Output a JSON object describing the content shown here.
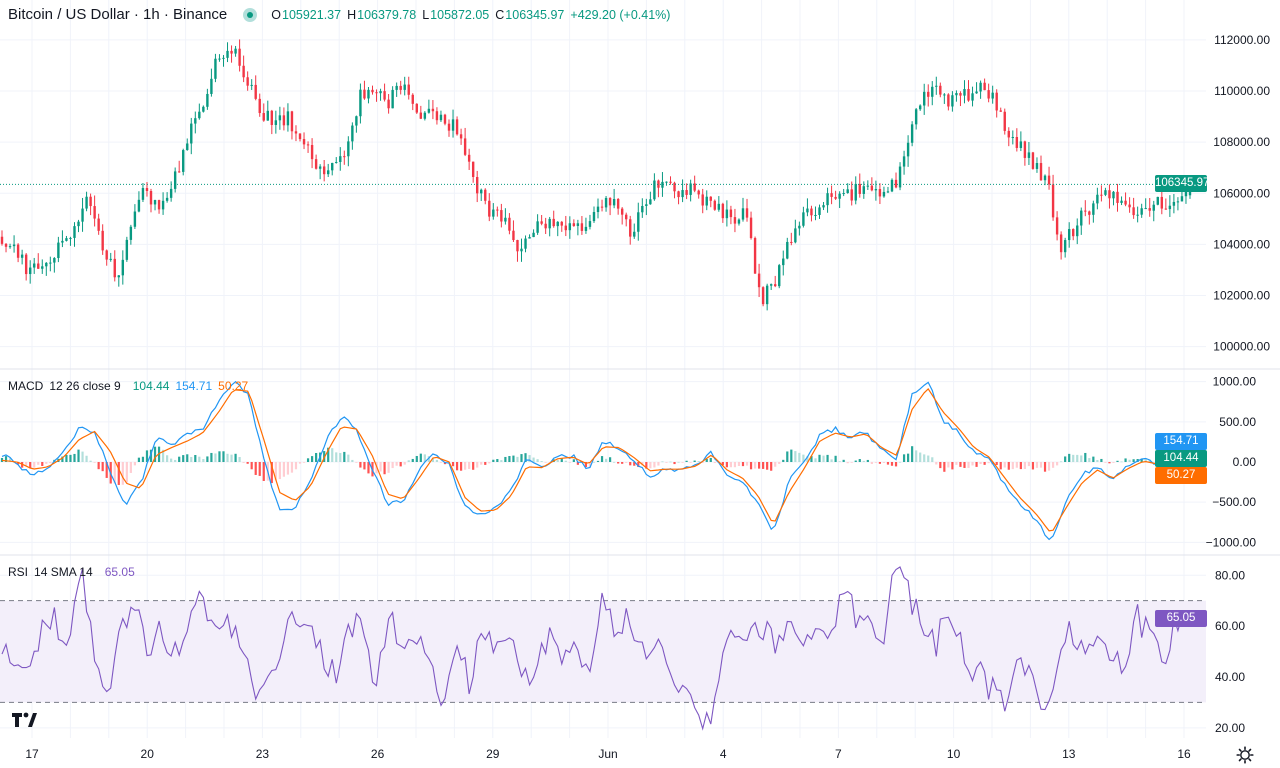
{
  "header": {
    "symbol": "Bitcoin / US Dollar",
    "interval": "1h",
    "exchange": "Binance",
    "title": "Bitcoin / US Dollar · 1h · Binance",
    "open": "105921.37",
    "high": "106379.78",
    "low": "105872.05",
    "close": "106345.97",
    "change": "+429.20 (+0.41%)"
  },
  "colors": {
    "up": "#089981",
    "down": "#f23645",
    "macd_line": "#2196f3",
    "signal_line": "#ff6d00",
    "rsi_line": "#7e57c2",
    "rsi_band": "#f3effa",
    "grid": "#f0f3fa"
  },
  "chart_data": [
    {
      "type": "candlestick",
      "name": "price",
      "x": [
        "17",
        "18",
        "19",
        "20",
        "21",
        "22",
        "23",
        "24",
        "25",
        "26",
        "27",
        "28",
        "29",
        "30",
        "31",
        "Jun",
        "2",
        "3",
        "4",
        "5",
        "6",
        "7",
        "8",
        "9",
        "10",
        "11",
        "12",
        "13",
        "14",
        "15",
        "16"
      ],
      "x_ticks": [
        "17",
        "20",
        "23",
        "26",
        "29",
        "Jun",
        "4",
        "7",
        "10",
        "13",
        "16"
      ],
      "close_path": [
        104300,
        103600,
        102900,
        103300,
        103800,
        104600,
        106000,
        103900,
        102600,
        105000,
        106200,
        105300,
        106500,
        108200,
        109200,
        111400,
        111800,
        110600,
        109200,
        108700,
        108900,
        108300,
        107200,
        106900,
        107300,
        109800,
        110200,
        109600,
        110300,
        109300,
        109000,
        108800,
        108400,
        106400,
        105400,
        105000,
        103900,
        104600,
        104900,
        105000,
        104400,
        105000,
        105800,
        105500,
        104300,
        105800,
        106600,
        106100,
        106200,
        105800,
        105600,
        104800,
        105300,
        101700,
        102600,
        104300,
        105000,
        105500,
        106000,
        105900,
        106200,
        106100,
        106000,
        107200,
        109500,
        110100,
        109600,
        109700,
        110100,
        109900,
        108600,
        108000,
        107200,
        106500,
        103800,
        104800,
        105500,
        106100,
        105700,
        105200,
        105400,
        105600,
        105500,
        106345.97
      ],
      "yticks": [
        100000,
        102000,
        104000,
        106000,
        108000,
        110000,
        112000
      ],
      "ylim": [
        99400,
        112700
      ],
      "last_price": "106345.97",
      "tick_labels": [
        "100000.00",
        "102000.00",
        "104000.00",
        "106000.00",
        "108000.00",
        "110000.00",
        "112000.00"
      ]
    },
    {
      "type": "line+histogram",
      "name": "MACD",
      "params": "12 26 close 9",
      "series": [
        {
          "name": "histogram",
          "value": "104.44"
        },
        {
          "name": "macd",
          "value": "154.71"
        },
        {
          "name": "signal",
          "value": "50.27"
        }
      ],
      "macd_path": [
        100,
        -40,
        -150,
        -80,
        120,
        420,
        380,
        -120,
        -520,
        -260,
        310,
        200,
        360,
        400,
        730,
        1010,
        820,
        10,
        -620,
        -560,
        -240,
        250,
        580,
        380,
        -80,
        -520,
        -480,
        -120,
        130,
        -30,
        -560,
        -650,
        -590,
        -350,
        30,
        -90,
        60,
        70,
        -80,
        250,
        180,
        0,
        -170,
        -90,
        -100,
        -40,
        130,
        -180,
        -260,
        -520,
        -880,
        -240,
        10,
        330,
        410,
        290,
        380,
        140,
        50,
        850,
        1020,
        520,
        380,
        120,
        30,
        -280,
        -520,
        -720,
        -1000,
        -480,
        -160,
        -60,
        -220,
        -40,
        30,
        -50,
        80,
        154.71
      ],
      "signal_path": [
        20,
        0,
        -90,
        -60,
        60,
        280,
        380,
        140,
        -260,
        -330,
        90,
        180,
        260,
        360,
        610,
        900,
        880,
        260,
        -380,
        -480,
        -300,
        100,
        440,
        410,
        80,
        -400,
        -460,
        -210,
        70,
        0,
        -440,
        -610,
        -600,
        -420,
        -60,
        -70,
        40,
        60,
        -30,
        190,
        180,
        50,
        -110,
        -90,
        -90,
        -50,
        90,
        -100,
        -200,
        -420,
        -780,
        -380,
        -80,
        260,
        360,
        310,
        350,
        180,
        80,
        660,
        920,
        620,
        420,
        180,
        60,
        -200,
        -450,
        -640,
        -890,
        -560,
        -260,
        -100,
        -200,
        -80,
        10,
        -30,
        50,
        50.27
      ],
      "yticks": [
        -1000,
        -500,
        0,
        500,
        1000
      ],
      "tick_labels": [
        "−1000.00",
        "−500.00",
        "0.00",
        "500.00",
        "1000.00"
      ],
      "ylim": [
        -1120,
        1120
      ]
    },
    {
      "type": "line",
      "name": "RSI",
      "params": "14 SMA 14",
      "series": [
        {
          "name": "RSI",
          "value": "65.05"
        }
      ],
      "rsi_path": [
        55,
        48,
        40,
        58,
        62,
        54,
        80,
        50,
        35,
        58,
        64,
        52,
        60,
        48,
        66,
        70,
        58,
        62,
        50,
        35,
        45,
        52,
        66,
        58,
        48,
        40,
        56,
        62,
        38,
        64,
        48,
        58,
        44,
        28,
        50,
        38,
        60,
        52,
        56,
        44,
        38,
        60,
        48,
        52,
        46,
        70,
        58,
        64,
        50,
        56,
        44,
        38,
        30,
        20,
        44,
        62,
        56,
        60,
        52,
        66,
        58,
        62,
        54,
        72,
        64,
        60,
        56,
        84,
        72,
        60,
        54,
        66,
        48,
        42,
        36,
        28,
        52,
        40,
        22,
        44,
        58,
        52,
        60,
        50,
        46,
        64,
        56,
        48,
        60,
        65.05
      ],
      "yticks": [
        20,
        40,
        60,
        80
      ],
      "tick_labels": [
        "20.00",
        "40.00",
        "60.00",
        "80.00"
      ],
      "ylim": [
        16,
        86
      ],
      "bands": [
        30,
        70
      ]
    }
  ]
}
